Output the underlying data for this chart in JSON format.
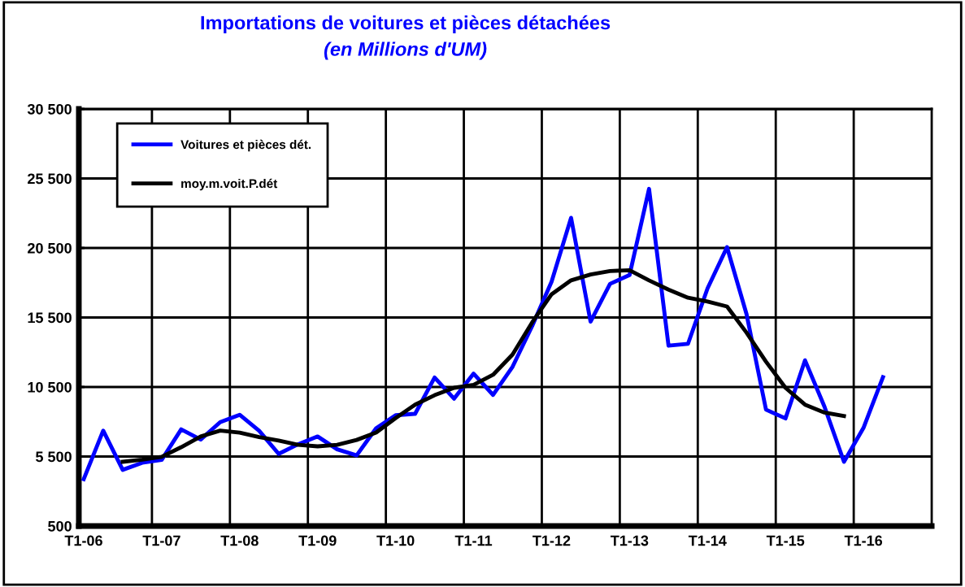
{
  "chart_data": {
    "type": "line",
    "title": "Importations de voitures et pièces détachées",
    "subtitle": "(en Millions d'UM)",
    "categories": [
      "T1-06",
      null,
      null,
      null,
      "T1-07",
      null,
      null,
      null,
      "T1-08",
      null,
      null,
      null,
      "T1-09",
      null,
      null,
      null,
      "T1-10",
      null,
      null,
      null,
      "T1-11",
      null,
      null,
      null,
      "T1-12",
      null,
      null,
      null,
      "T1-13",
      null,
      null,
      null,
      "T1-14",
      null,
      null,
      null,
      "T1-15",
      null,
      null,
      null,
      "T1-16",
      null
    ],
    "series": [
      {
        "name": "Voitures et pièces dét.",
        "color": "#0000ff",
        "values": [
          3870,
          7360,
          4540,
          5050,
          5260,
          7450,
          6720,
          7970,
          8500,
          7350,
          5690,
          6380,
          6940,
          6020,
          5580,
          7530,
          8470,
          8570,
          11180,
          9660,
          11460,
          9930,
          11960,
          14870,
          18070,
          22670,
          15200,
          17920,
          18550,
          24750,
          13470,
          13610,
          17590,
          20560,
          15750,
          8870,
          8240,
          12420,
          9080,
          5120,
          7560,
          11210
        ]
      },
      {
        "name": "moy.m.voit.P.dét",
        "color": "#000000",
        "values": [
          null,
          null,
          5120,
          5270,
          5480,
          6170,
          6940,
          7360,
          7220,
          6900,
          6650,
          6340,
          6230,
          6340,
          6690,
          7220,
          8260,
          9230,
          9910,
          10440,
          10650,
          11380,
          12840,
          15140,
          17170,
          18170,
          18590,
          18840,
          18900,
          18170,
          17500,
          16920,
          16650,
          16290,
          14410,
          12320,
          10440,
          9230,
          8660,
          8410,
          null,
          null
        ]
      }
    ],
    "ylim": [
      500,
      30500
    ],
    "yticks": [
      {
        "value": 500,
        "label": "500"
      },
      {
        "value": 5500,
        "label": "5 500"
      },
      {
        "value": 10500,
        "label": "10 500"
      },
      {
        "value": 15500,
        "label": "15 500"
      },
      {
        "value": 20500,
        "label": "20 500"
      },
      {
        "value": 25500,
        "label": "25 500"
      },
      {
        "value": 30500,
        "label": "30 500"
      }
    ],
    "grid": true,
    "legend": "top left",
    "marker": "none",
    "line_style": "solid"
  }
}
